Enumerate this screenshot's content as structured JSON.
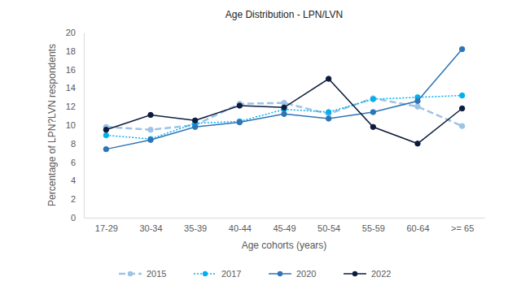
{
  "chart_data": {
    "type": "line",
    "title": "Age Distribution - LPN/LVN",
    "x_label": "Age cohorts (years)",
    "y_label": "Percentage of LPN?LVN respondents",
    "categories": [
      "17-29",
      "30-34",
      "35-39",
      "40-44",
      "45-49",
      "50-54",
      "55-59",
      "60-64",
      ">= 65"
    ],
    "series": [
      {
        "name": "2015",
        "color": "#9dc3e6",
        "line_style": "dashed",
        "marker": "circle",
        "values": [
          9.8,
          9.5,
          10.0,
          12.3,
          12.4,
          11.2,
          12.9,
          12.0,
          9.9
        ]
      },
      {
        "name": "2017",
        "color": "#00b0f0",
        "line_style": "dotted",
        "marker": "circle",
        "values": [
          8.9,
          8.5,
          10.2,
          10.4,
          11.7,
          11.4,
          12.8,
          13.0,
          13.2
        ]
      },
      {
        "name": "2020",
        "color": "#2e75b6",
        "line_style": "solid",
        "marker": "circle",
        "values": [
          7.4,
          8.4,
          9.8,
          10.3,
          11.2,
          10.7,
          11.4,
          12.6,
          18.2
        ]
      },
      {
        "name": "2022",
        "color": "#0d1b3e",
        "line_style": "solid",
        "marker": "circle",
        "values": [
          9.5,
          11.1,
          10.5,
          12.1,
          11.9,
          15.0,
          9.8,
          8.0,
          11.8
        ]
      }
    ],
    "ylim": [
      0,
      20
    ],
    "yticks": [
      0,
      2,
      4,
      6,
      8,
      10,
      12,
      14,
      16,
      18,
      20
    ],
    "grid": false,
    "legend": "bottom"
  }
}
